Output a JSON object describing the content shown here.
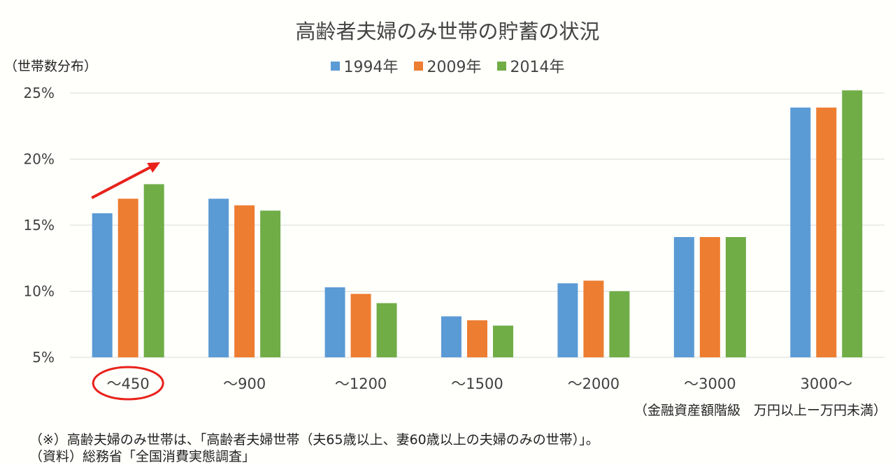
{
  "chart_data": {
    "type": "bar",
    "title": "高齢者夫婦のみ世帯の貯蓄の状況",
    "ylabel": "（世帯数分布）",
    "xlabel": "（金融資産額階級　万円以上ー万円未満）",
    "categories": [
      "～450",
      "～900",
      "～1200",
      "～1500",
      "～2000",
      "～3000",
      "3000～"
    ],
    "series": [
      {
        "name": "1994年",
        "color": "#5b9bd5",
        "values": [
          15.9,
          17.0,
          10.3,
          8.1,
          10.6,
          14.1,
          23.9
        ]
      },
      {
        "name": "2009年",
        "color": "#ed7d31",
        "values": [
          17.0,
          16.5,
          9.8,
          7.8,
          10.8,
          14.1,
          23.9
        ]
      },
      {
        "name": "2014年",
        "color": "#70ad47",
        "values": [
          18.1,
          16.1,
          9.1,
          7.4,
          10.0,
          14.1,
          25.2
        ]
      }
    ],
    "ylim": [
      5,
      25
    ],
    "yticks": [
      "5%",
      "10%",
      "15%",
      "20%",
      "25%"
    ],
    "ytick_values": [
      5,
      10,
      15,
      20,
      25
    ],
    "grid": true,
    "legend_position": "top-center",
    "annotations": {
      "arrow": "red upward arrow over first category",
      "circle": "red circle around first category label"
    }
  },
  "notes": [
    "（※）高齢夫婦のみ世帯は、「高齢者夫婦世帯（夫65歳以上、妻60歳以上の夫婦のみの世帯）」。",
    "（資料）総務省「全国消費実態調査」"
  ],
  "colors": {
    "highlight": "#e8221b",
    "grid": "#d9d9d9"
  }
}
